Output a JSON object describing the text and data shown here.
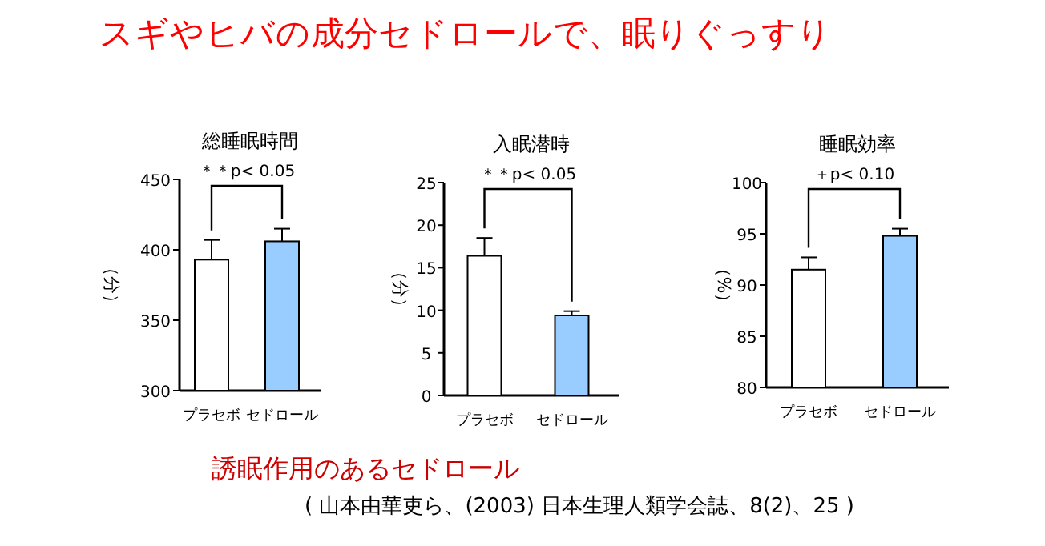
{
  "chart_data": [
    {
      "type": "bar",
      "title": "総睡眠時間",
      "ylabel": "（分）",
      "categories": [
        "プラセボ",
        "セドロール"
      ],
      "values": [
        393,
        406
      ],
      "errors": [
        14,
        9
      ],
      "colors": [
        "#ffffff",
        "#99ccff"
      ],
      "ylim": [
        300,
        450
      ],
      "yticks": [
        300,
        350,
        400,
        450
      ],
      "annotations": [
        "＊＊p< 0.05"
      ]
    },
    {
      "type": "bar",
      "title": "入眠潜時",
      "ylabel": "（分）",
      "categories": [
        "プラセボ",
        "セドロール"
      ],
      "values": [
        16.4,
        9.4
      ],
      "errors": [
        2.1,
        0.5
      ],
      "colors": [
        "#ffffff",
        "#99ccff"
      ],
      "ylim": [
        0,
        25
      ],
      "yticks": [
        0,
        5,
        10,
        15,
        20,
        25
      ],
      "annotations": [
        "＊＊p< 0.05"
      ]
    },
    {
      "type": "bar",
      "title": "睡眠効率",
      "ylabel": "（%）",
      "categories": [
        "プラセボ",
        "セドロール"
      ],
      "values": [
        91.5,
        94.8
      ],
      "errors": [
        1.2,
        0.7
      ],
      "colors": [
        "#ffffff",
        "#99ccff"
      ],
      "ylim": [
        80,
        100
      ],
      "yticks": [
        80,
        85,
        90,
        95,
        100
      ],
      "annotations": [
        "＋p< 0.10"
      ]
    },
    {
      "type": "other",
      "title": "スギやヒバの成分セドロールで、眠りぐっすり",
      "annotations": [
        "誘眠作用のあるセドロール",
        "( 山本由華吏ら、(2003) 日本生理人類学会誌、8(2)、25 )"
      ]
    }
  ]
}
